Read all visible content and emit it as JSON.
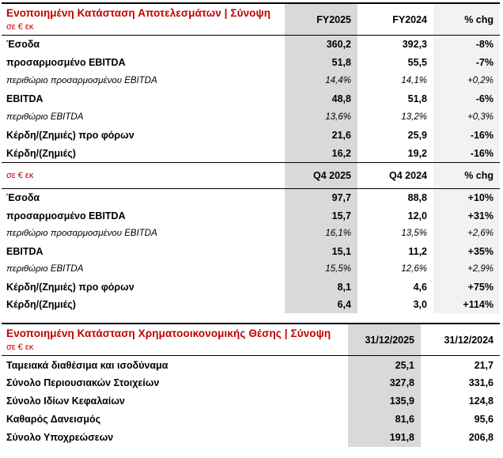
{
  "colors": {
    "accent_red": "#C00000",
    "value_column_shade": "#D9D9D9",
    "chg_column_shade": "#F2F2F2",
    "border_black": "#000000"
  },
  "tables": [
    {
      "title": "Ενοποιημένη Κατάσταση Αποτελεσμάτων | Σύνοψη",
      "unit": "σε € εκ",
      "columns": [
        "FY2025",
        "FY2024",
        "% chg"
      ],
      "rows": [
        {
          "label": "Έσοδα",
          "values": [
            "360,2",
            "392,3",
            "-8%"
          ],
          "italic": false
        },
        {
          "label": "προσαρμοσμένο EBITDA",
          "values": [
            "51,8",
            "55,5",
            "-7%"
          ],
          "italic": false
        },
        {
          "label": "περιθώριο προσαρμοσμένου EBITDA",
          "values": [
            "14,4%",
            "14,1%",
            "+0,2%"
          ],
          "italic": true
        },
        {
          "label": "EBITDA",
          "values": [
            "48,8",
            "51,8",
            "-6%"
          ],
          "italic": false
        },
        {
          "label": "περιθώριο EBITDA",
          "values": [
            "13,6%",
            "13,2%",
            "+0,3%"
          ],
          "italic": true
        },
        {
          "label": "Κέρδη/(Ζημιές) προ φόρων",
          "values": [
            "21,6",
            "25,9",
            "-16%"
          ],
          "italic": false
        },
        {
          "label": "Κέρδη/(Ζημιές)",
          "values": [
            "16,2",
            "19,2",
            "-16%"
          ],
          "italic": false
        }
      ]
    },
    {
      "title": "",
      "unit": "σε € εκ",
      "columns": [
        "Q4 2025",
        "Q4 2024",
        "% chg"
      ],
      "rows": [
        {
          "label": "Έσοδα",
          "values": [
            "97,7",
            "88,8",
            "+10%"
          ],
          "italic": false
        },
        {
          "label": "προσαρμοσμένο EBITDA",
          "values": [
            "15,7",
            "12,0",
            "+31%"
          ],
          "italic": false
        },
        {
          "label": "περιθώριο προσαρμοσμένου EBITDA",
          "values": [
            "16,1%",
            "13,5%",
            "+2,6%"
          ],
          "italic": true
        },
        {
          "label": "EBITDA",
          "values": [
            "15,1",
            "11,2",
            "+35%"
          ],
          "italic": false
        },
        {
          "label": "περιθώριο EBITDA",
          "values": [
            "15,5%",
            "12,6%",
            "+2,9%"
          ],
          "italic": true
        },
        {
          "label": "Κέρδη/(Ζημιές) προ φόρων",
          "values": [
            "8,1",
            "4,6",
            "+75%"
          ],
          "italic": false
        },
        {
          "label": "Κέρδη/(Ζημιές)",
          "values": [
            "6,4",
            "3,0",
            "+114%"
          ],
          "italic": false
        }
      ]
    },
    {
      "title": "Ενοποιημένη Κατάσταση Χρηματοοικονομικής Θέσης | Σύνοψη",
      "unit": "σε € εκ",
      "columns": [
        "31/12/2025",
        "31/12/2024"
      ],
      "rows": [
        {
          "label": "Ταμειακά διαθέσιμα και ισοδύναμα",
          "values": [
            "25,1",
            "21,7"
          ],
          "italic": false
        },
        {
          "label": "Σύνολο Περιουσιακών Στοιχείων",
          "values": [
            "327,8",
            "331,6"
          ],
          "italic": false
        },
        {
          "label": "Σύνολο Ιδίων Κεφαλαίων",
          "values": [
            "135,9",
            "124,8"
          ],
          "italic": false
        },
        {
          "label": "Καθαρός Δανεισμός",
          "values": [
            "81,6",
            "95,6"
          ],
          "italic": false
        },
        {
          "label": "Σύνολο Υποχρεώσεων",
          "values": [
            "191,8",
            "206,8"
          ],
          "italic": false
        }
      ]
    }
  ]
}
